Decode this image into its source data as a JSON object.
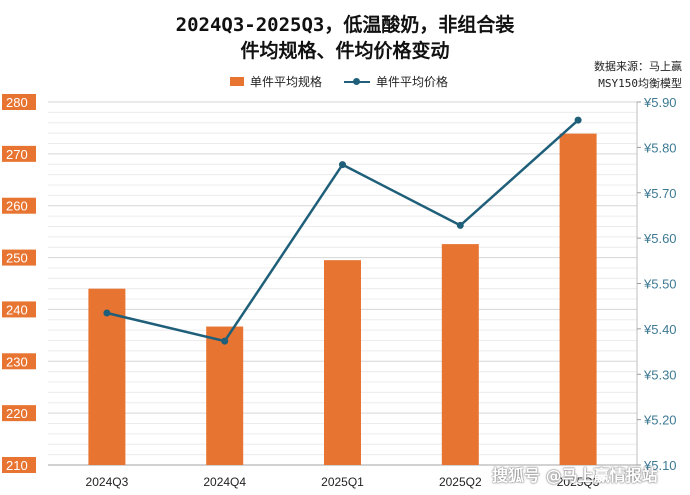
{
  "title_line1": "2024Q3-2025Q3，低温酸奶，非组合装",
  "title_line2": "件均规格、件均价格变动",
  "source_line1": "数据来源：马上赢",
  "source_line2": "MSY150均衡模型",
  "watermark": "搜狐号 @马上赢情报站",
  "colors": {
    "bar": "#e87432",
    "line": "#1f5f7a",
    "left_axis": "#e87432",
    "right_axis": "#3d7a93"
  },
  "chart_data": {
    "type": "bar",
    "title": "2024Q3-2025Q3，低温酸奶，非组合装 件均规格、件均价格变动",
    "categories": [
      "2024Q3",
      "2024Q4",
      "2025Q1",
      "2025Q2",
      "2025Q3"
    ],
    "series": [
      {
        "name": "单件平均规格",
        "type": "bar",
        "axis": "left",
        "values": [
          244.0,
          236.7,
          249.5,
          252.6,
          273.9
        ]
      },
      {
        "name": "单件平均价格",
        "type": "line",
        "axis": "right",
        "values": [
          5.435,
          5.373,
          5.762,
          5.628,
          5.86
        ]
      }
    ],
    "y_left": {
      "min": 210,
      "max": 280,
      "step": 10,
      "ticks": [
        "210",
        "220",
        "230",
        "240",
        "250",
        "260",
        "270",
        "280"
      ]
    },
    "y_right": {
      "min": 5.1,
      "max": 5.9,
      "step": 0.1,
      "ticks": [
        "¥5.10",
        "¥5.20",
        "¥5.30",
        "¥5.40",
        "¥5.50",
        "¥5.60",
        "¥5.70",
        "¥5.80",
        "¥5.90"
      ]
    },
    "grid": true,
    "legend_position": "top"
  }
}
